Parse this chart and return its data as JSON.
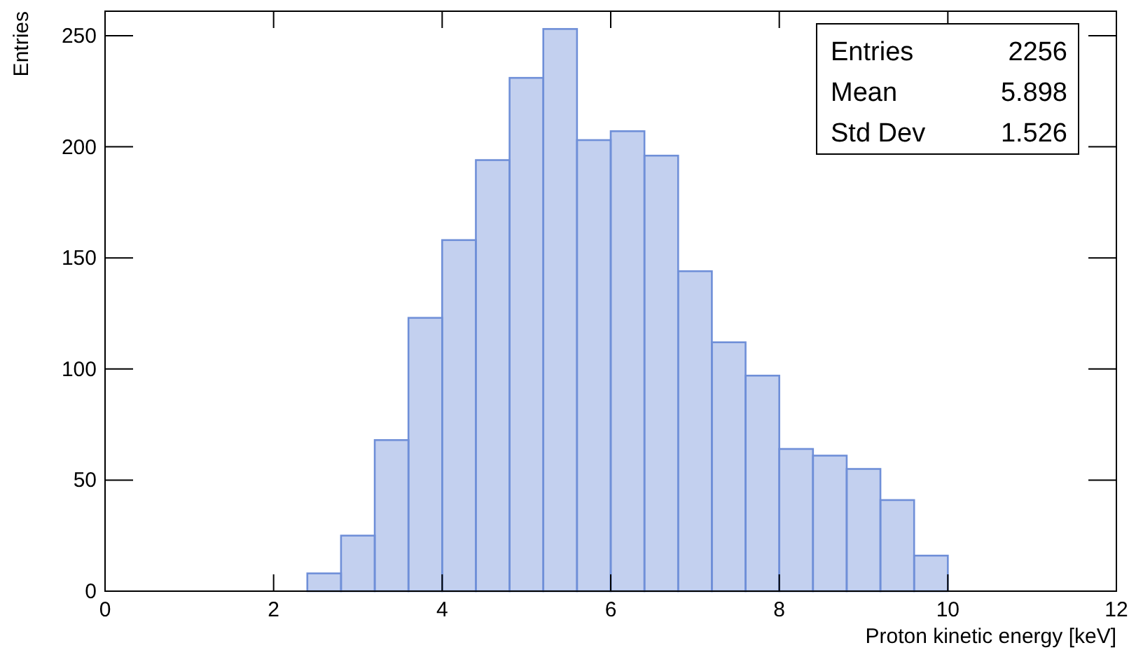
{
  "chart_data": {
    "type": "histogram",
    "xlabel": "Proton kinetic energy [keV]",
    "ylabel": "Entries",
    "bins": [
      2.4,
      2.8,
      3.2,
      3.6,
      4.0,
      4.4,
      4.8,
      5.2,
      5.6,
      6.0,
      6.4,
      6.8,
      7.2,
      7.6,
      8.0,
      8.4,
      8.8,
      9.2,
      9.6,
      10.0
    ],
    "values": [
      8,
      25,
      68,
      123,
      158,
      194,
      231,
      253,
      203,
      207,
      196,
      144,
      112,
      97,
      64,
      61,
      55,
      41,
      16
    ],
    "color": "#6f8fd8",
    "xlim": [
      0,
      12
    ],
    "xticks": [
      0,
      2,
      4,
      6,
      8,
      10,
      12
    ],
    "ylim": [
      0,
      261
    ],
    "yticks": [
      0,
      50,
      100,
      150,
      200,
      250
    ],
    "grid": false,
    "annotations": [
      "Entries",
      "2256",
      "Mean",
      "5.898",
      "Std Dev",
      "1.526"
    ]
  }
}
